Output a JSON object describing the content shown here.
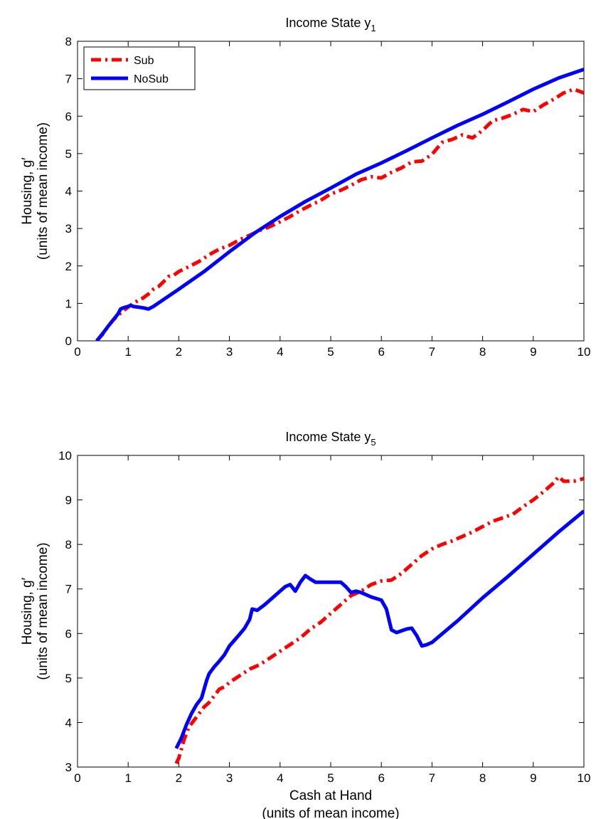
{
  "chart_data": [
    {
      "type": "line",
      "title": "Income State y",
      "title_subscript": "1",
      "ylabel_line1": "Housing, g′",
      "ylabel_line2": "(units of mean income)",
      "xlabel_line1": "",
      "xlabel_line2": "",
      "xlim": [
        0,
        10
      ],
      "ylim": [
        0,
        8
      ],
      "xticks": [
        "0",
        "1",
        "2",
        "3",
        "4",
        "5",
        "6",
        "7",
        "8",
        "9",
        "10"
      ],
      "yticks": [
        "0",
        "1",
        "2",
        "3",
        "4",
        "5",
        "6",
        "7",
        "8"
      ],
      "grid": false,
      "legend_position": "top-left",
      "series": [
        {
          "name": "Sub",
          "color": "#ff0000",
          "style": "dash-dot",
          "x": [
            0.38,
            0.5,
            0.6,
            0.7,
            0.8,
            0.9,
            1.0,
            1.1,
            1.2,
            1.3,
            1.4,
            1.5,
            1.6,
            1.7,
            1.8,
            1.9,
            2.0,
            2.2,
            2.4,
            2.6,
            2.8,
            3.0,
            3.2,
            3.4,
            3.6,
            3.8,
            4.0,
            4.2,
            4.4,
            4.6,
            4.8,
            5.0,
            5.2,
            5.4,
            5.6,
            5.8,
            6.0,
            6.2,
            6.4,
            6.6,
            6.8,
            7.0,
            7.2,
            7.4,
            7.6,
            7.8,
            8.0,
            8.2,
            8.4,
            8.6,
            8.8,
            9.0,
            9.2,
            9.4,
            9.6,
            9.8,
            10.0
          ],
          "y": [
            0.0,
            0.18,
            0.38,
            0.55,
            0.68,
            0.8,
            0.9,
            1.0,
            1.08,
            1.15,
            1.25,
            1.38,
            1.45,
            1.58,
            1.72,
            1.75,
            1.85,
            1.98,
            2.12,
            2.3,
            2.45,
            2.55,
            2.7,
            2.82,
            2.95,
            3.05,
            3.18,
            3.32,
            3.48,
            3.62,
            3.75,
            3.92,
            4.02,
            4.15,
            4.3,
            4.38,
            4.35,
            4.5,
            4.62,
            4.78,
            4.8,
            4.98,
            5.3,
            5.38,
            5.5,
            5.42,
            5.62,
            5.88,
            5.95,
            6.05,
            6.18,
            6.12,
            6.3,
            6.45,
            6.62,
            6.72,
            6.62
          ]
        },
        {
          "name": "NoSub",
          "color": "#0000ff",
          "style": "solid",
          "x": [
            0.38,
            0.5,
            0.6,
            0.7,
            0.8,
            0.85,
            0.9,
            0.95,
            1.0,
            1.05,
            1.1,
            1.2,
            1.3,
            1.4,
            1.5,
            2.0,
            2.5,
            3.0,
            3.5,
            4.0,
            4.5,
            5.0,
            5.5,
            6.0,
            6.5,
            7.0,
            7.5,
            8.0,
            8.5,
            9.0,
            9.5,
            10.0
          ],
          "y": [
            0.0,
            0.2,
            0.38,
            0.55,
            0.72,
            0.85,
            0.88,
            0.9,
            0.92,
            0.95,
            0.92,
            0.9,
            0.88,
            0.85,
            0.92,
            1.38,
            1.85,
            2.38,
            2.88,
            3.32,
            3.72,
            4.08,
            4.45,
            4.75,
            5.08,
            5.42,
            5.75,
            6.05,
            6.38,
            6.72,
            7.02,
            7.25
          ]
        }
      ]
    },
    {
      "type": "line",
      "title": "Income State y",
      "title_subscript": "5",
      "ylabel_line1": "Housing, g′",
      "ylabel_line2": "(units of mean income)",
      "xlabel_line1": "Cash at Hand",
      "xlabel_line2": "(units of mean income)",
      "xlim": [
        0,
        10
      ],
      "ylim": [
        3,
        10
      ],
      "xticks": [
        "0",
        "1",
        "2",
        "3",
        "4",
        "5",
        "6",
        "7",
        "8",
        "9",
        "10"
      ],
      "yticks": [
        "3",
        "4",
        "5",
        "6",
        "7",
        "8",
        "9",
        "10"
      ],
      "grid": false,
      "series": [
        {
          "name": "Sub",
          "color": "#ff0000",
          "style": "dash-dot",
          "x": [
            1.95,
            2.0,
            2.1,
            2.2,
            2.3,
            2.4,
            2.5,
            2.6,
            2.7,
            2.8,
            2.9,
            3.0,
            3.2,
            3.4,
            3.6,
            3.8,
            4.0,
            4.2,
            4.4,
            4.6,
            4.8,
            5.0,
            5.2,
            5.4,
            5.6,
            5.8,
            6.0,
            6.2,
            6.4,
            6.6,
            6.8,
            7.0,
            7.2,
            7.4,
            7.6,
            7.8,
            8.0,
            8.2,
            8.4,
            8.6,
            8.8,
            9.0,
            9.2,
            9.4,
            9.5,
            9.6,
            9.8,
            10.0
          ],
          "y": [
            3.08,
            3.2,
            3.6,
            3.9,
            4.05,
            4.2,
            4.35,
            4.45,
            4.6,
            4.75,
            4.8,
            4.9,
            5.05,
            5.2,
            5.3,
            5.45,
            5.6,
            5.75,
            5.9,
            6.1,
            6.25,
            6.45,
            6.65,
            6.85,
            6.95,
            7.1,
            7.18,
            7.2,
            7.35,
            7.55,
            7.75,
            7.9,
            8.0,
            8.08,
            8.18,
            8.28,
            8.4,
            8.52,
            8.6,
            8.68,
            8.85,
            9.0,
            9.18,
            9.38,
            9.52,
            9.42,
            9.42,
            9.48
          ]
        },
        {
          "name": "NoSub",
          "color": "#0000ff",
          "style": "solid",
          "x": [
            1.95,
            2.05,
            2.15,
            2.25,
            2.35,
            2.45,
            2.55,
            2.6,
            2.7,
            2.8,
            2.9,
            3.0,
            3.1,
            3.2,
            3.3,
            3.4,
            3.45,
            3.55,
            3.7,
            3.85,
            4.0,
            4.1,
            4.2,
            4.3,
            4.4,
            4.5,
            4.6,
            4.7,
            4.8,
            5.0,
            5.2,
            5.3,
            5.4,
            5.5,
            5.6,
            5.8,
            6.0,
            6.1,
            6.2,
            6.3,
            6.5,
            6.6,
            6.7,
            6.8,
            6.9,
            7.0,
            7.5,
            8.0,
            8.5,
            9.0,
            9.5,
            10.0
          ],
          "y": [
            3.42,
            3.65,
            3.95,
            4.2,
            4.4,
            4.55,
            4.95,
            5.1,
            5.25,
            5.38,
            5.52,
            5.72,
            5.85,
            5.98,
            6.12,
            6.32,
            6.55,
            6.52,
            6.65,
            6.8,
            6.95,
            7.05,
            7.1,
            6.95,
            7.15,
            7.3,
            7.22,
            7.15,
            7.15,
            7.15,
            7.15,
            7.05,
            6.92,
            6.95,
            6.92,
            6.82,
            6.75,
            6.55,
            6.08,
            6.02,
            6.1,
            6.12,
            5.95,
            5.72,
            5.75,
            5.8,
            6.28,
            6.8,
            7.28,
            7.78,
            8.28,
            8.75
          ]
        }
      ]
    }
  ]
}
